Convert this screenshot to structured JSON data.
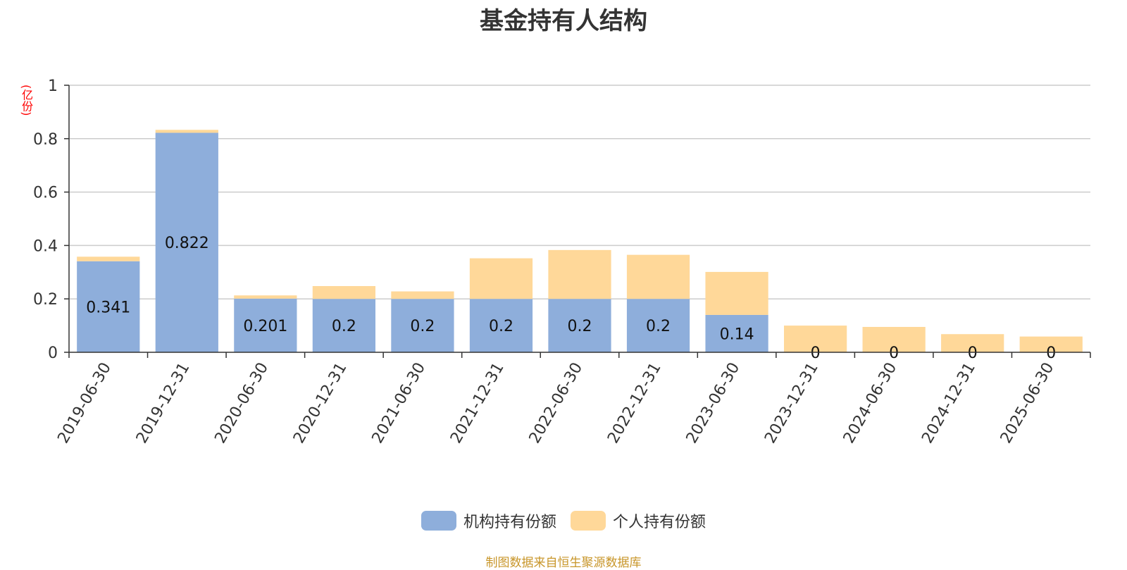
{
  "chart_data": {
    "type": "bar",
    "stacked": true,
    "title": "基金持有人结构",
    "ylabel": "(亿份)",
    "ylim": [
      0,
      1
    ],
    "yticks": [
      0,
      0.2,
      0.4,
      0.6,
      0.8,
      1
    ],
    "grid": true,
    "legend_position": "bottom",
    "categories": [
      "2019-06-30",
      "2019-12-31",
      "2020-06-30",
      "2020-12-31",
      "2021-06-30",
      "2021-12-31",
      "2022-06-30",
      "2022-12-31",
      "2023-06-30",
      "2023-12-31",
      "2024-06-30",
      "2024-12-31",
      "2025-06-30"
    ],
    "series": [
      {
        "name": "机构持有份额",
        "color": "#8eaedb",
        "values": [
          0.341,
          0.822,
          0.201,
          0.2,
          0.2,
          0.2,
          0.2,
          0.2,
          0.14,
          0,
          0,
          0,
          0
        ],
        "labels": [
          "0.341",
          "0.822",
          "0.201",
          "0.2",
          "0.2",
          "0.2",
          "0.2",
          "0.2",
          "0.14",
          "0",
          "0",
          "0",
          "0"
        ]
      },
      {
        "name": "个人持有份额",
        "color": "#ffd899",
        "values": [
          0.017,
          0.011,
          0.012,
          0.048,
          0.028,
          0.152,
          0.183,
          0.165,
          0.161,
          0.1,
          0.095,
          0.068,
          0.059
        ]
      }
    ]
  },
  "footer": {
    "source": "制图数据来自恒生聚源数据库"
  }
}
